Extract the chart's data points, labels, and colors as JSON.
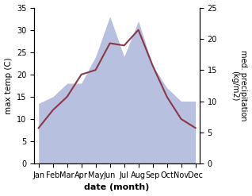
{
  "months": [
    "Jan",
    "Feb",
    "Mar",
    "Apr",
    "May",
    "Jun",
    "Jul",
    "Aug",
    "Sep",
    "Oct",
    "Nov",
    "Dec"
  ],
  "max_temp": [
    8,
    12,
    15,
    20,
    21,
    27,
    26.5,
    30,
    22,
    15,
    10,
    8
  ],
  "precipitation_left": [
    13.5,
    15,
    18,
    18,
    24,
    33,
    24,
    32,
    22,
    17,
    14,
    14
  ],
  "temp_color": "#8b3848",
  "precip_fill_color": "#b8c0e0",
  "bg_color": "#ffffff",
  "xlabel": "date (month)",
  "ylabel_left": "max temp (C)",
  "ylabel_right": "med. precipitation\n(kg/m2)",
  "ylim_left": [
    0,
    35
  ],
  "ylim_right": [
    0,
    25
  ],
  "yticks_left": [
    0,
    5,
    10,
    15,
    20,
    25,
    30,
    35
  ],
  "yticks_right": [
    0,
    5,
    10,
    15,
    20,
    25
  ],
  "precip_scale_factor": 0.7143
}
